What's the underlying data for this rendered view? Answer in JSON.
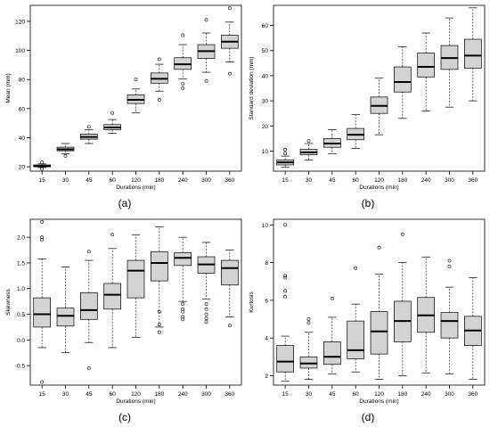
{
  "figure": {
    "panel_labels": [
      "(a)",
      "(b)",
      "(c)",
      "(d)"
    ]
  },
  "chart_data": [
    {
      "type": "box",
      "panel_label": "(a)",
      "xlabel": "Durations (min)",
      "ylabel": "Mean (mm)",
      "categories": [
        "15",
        "30",
        "45",
        "60",
        "120",
        "180",
        "240",
        "300",
        "360"
      ],
      "ylim": [
        17,
        131
      ],
      "yticks": [
        20,
        40,
        60,
        80,
        100,
        120
      ],
      "grid": false,
      "fill": "#d3d3d3",
      "boxes": [
        {
          "whislo": 19.5,
          "q1": 20.0,
          "med": 20.5,
          "q3": 21.3,
          "whishi": 22.0,
          "fliers": [
            23.0,
            18.5
          ]
        },
        {
          "whislo": 29.0,
          "q1": 31.0,
          "med": 32.0,
          "q3": 33.5,
          "whishi": 36.0,
          "fliers": [
            27.5
          ]
        },
        {
          "whislo": 36.0,
          "q1": 39.0,
          "med": 40.5,
          "q3": 42.5,
          "whishi": 45.5,
          "fliers": [
            47.5
          ]
        },
        {
          "whislo": 43.0,
          "q1": 45.5,
          "med": 47.0,
          "q3": 49.0,
          "whishi": 52.5,
          "fliers": [
            57.0
          ]
        },
        {
          "whislo": 57.0,
          "q1": 63.5,
          "med": 66.0,
          "q3": 69.5,
          "whishi": 73.5,
          "fliers": [
            80.0
          ]
        },
        {
          "whislo": 72.0,
          "q1": 77.5,
          "med": 80.5,
          "q3": 84.5,
          "whishi": 90.5,
          "fliers": [
            66.0,
            94.0
          ]
        },
        {
          "whislo": 80.5,
          "q1": 87.0,
          "med": 90.5,
          "q3": 95.0,
          "whishi": 104.0,
          "fliers": [
            110.5,
            74.0,
            77.0
          ]
        },
        {
          "whislo": 85.0,
          "q1": 94.5,
          "med": 99.5,
          "q3": 104.0,
          "whishi": 112.0,
          "fliers": [
            121.0,
            79.0
          ]
        },
        {
          "whislo": 92.0,
          "q1": 101.5,
          "med": 106.0,
          "q3": 110.5,
          "whishi": 119.5,
          "fliers": [
            129.0,
            84.0
          ]
        }
      ]
    },
    {
      "type": "box",
      "panel_label": "(b)",
      "xlabel": "Durations (min)",
      "ylabel": "Standard deviation (mm)",
      "categories": [
        "15",
        "30",
        "45",
        "60",
        "120",
        "180",
        "240",
        "300",
        "360"
      ],
      "ylim": [
        2,
        68
      ],
      "yticks": [
        10,
        20,
        30,
        40,
        50,
        60
      ],
      "grid": false,
      "fill": "#d3d3d3",
      "boxes": [
        {
          "whislo": 3.5,
          "q1": 4.5,
          "med": 5.5,
          "q3": 6.5,
          "whishi": 8.0,
          "fliers": [
            9.0,
            10.5
          ]
        },
        {
          "whislo": 6.5,
          "q1": 8.5,
          "med": 9.5,
          "q3": 10.7,
          "whishi": 13.0,
          "fliers": [
            14.0
          ]
        },
        {
          "whislo": 9.0,
          "q1": 11.5,
          "med": 13.0,
          "q3": 15.0,
          "whishi": 18.5,
          "fliers": []
        },
        {
          "whislo": 11.0,
          "q1": 14.5,
          "med": 16.5,
          "q3": 19.0,
          "whishi": 24.5,
          "fliers": []
        },
        {
          "whislo": 16.5,
          "q1": 25.0,
          "med": 28.0,
          "q3": 31.5,
          "whishi": 39.0,
          "fliers": []
        },
        {
          "whislo": 23.0,
          "q1": 33.5,
          "med": 37.5,
          "q3": 43.5,
          "whishi": 51.5,
          "fliers": []
        },
        {
          "whislo": 26.0,
          "q1": 39.5,
          "med": 43.5,
          "q3": 49.0,
          "whishi": 57.0,
          "fliers": []
        },
        {
          "whislo": 27.5,
          "q1": 42.5,
          "med": 47.0,
          "q3": 52.0,
          "whishi": 63.0,
          "fliers": []
        },
        {
          "whislo": 30.0,
          "q1": 43.0,
          "med": 48.0,
          "q3": 54.5,
          "whishi": 67.0,
          "fliers": []
        }
      ]
    },
    {
      "type": "box",
      "panel_label": "(c)",
      "xlabel": "Durations (min)",
      "ylabel": "Skewness",
      "categories": [
        "15",
        "30",
        "45",
        "60",
        "120",
        "180",
        "240",
        "300",
        "360"
      ],
      "ylim": [
        -0.88,
        2.35
      ],
      "yticks": [
        -0.5,
        0.0,
        0.5,
        1.0,
        1.5,
        2.0
      ],
      "ytick_labels": [
        "-0.5",
        "0.0",
        "0.5",
        "1.0",
        "1.5",
        "2.0"
      ],
      "grid": false,
      "fill": "#d3d3d3",
      "boxes": [
        {
          "whislo": -0.15,
          "q1": 0.25,
          "med": 0.5,
          "q3": 0.82,
          "whishi": 1.58,
          "fliers": [
            1.95,
            2.0,
            2.3,
            -0.82
          ]
        },
        {
          "whislo": -0.25,
          "q1": 0.27,
          "med": 0.47,
          "q3": 0.62,
          "whishi": 1.42,
          "fliers": []
        },
        {
          "whislo": -0.05,
          "q1": 0.4,
          "med": 0.58,
          "q3": 0.92,
          "whishi": 1.55,
          "fliers": [
            1.72,
            -0.55
          ]
        },
        {
          "whislo": -0.15,
          "q1": 0.6,
          "med": 0.88,
          "q3": 1.1,
          "whishi": 1.78,
          "fliers": [
            2.05
          ]
        },
        {
          "whislo": 0.05,
          "q1": 0.82,
          "med": 1.35,
          "q3": 1.55,
          "whishi": 2.05,
          "fliers": []
        },
        {
          "whislo": 0.25,
          "q1": 1.15,
          "med": 1.5,
          "q3": 1.72,
          "whishi": 2.2,
          "fliers": [
            0.55,
            0.3,
            0.15
          ]
        },
        {
          "whislo": 0.75,
          "q1": 1.45,
          "med": 1.6,
          "q3": 1.7,
          "whishi": 2.0,
          "fliers": [
            0.7,
            0.6,
            0.55,
            0.45,
            0.4
          ]
        },
        {
          "whislo": 0.8,
          "q1": 1.3,
          "med": 1.47,
          "q3": 1.62,
          "whishi": 1.9,
          "fliers": [
            0.7,
            0.6,
            0.5,
            0.42,
            0.35
          ]
        },
        {
          "whislo": 0.45,
          "q1": 1.07,
          "med": 1.4,
          "q3": 1.55,
          "whishi": 1.75,
          "fliers": [
            0.28
          ]
        }
      ]
    },
    {
      "type": "box",
      "panel_label": "(d)",
      "xlabel": "Durations (min)",
      "ylabel": "Kurtosis",
      "categories": [
        "15",
        "30",
        "45",
        "60",
        "120",
        "180",
        "240",
        "300",
        "360"
      ],
      "ylim": [
        1.5,
        10.3
      ],
      "yticks": [
        2,
        4,
        6,
        8,
        10
      ],
      "grid": false,
      "fill": "#d3d3d3",
      "boxes": [
        {
          "whislo": 1.7,
          "q1": 2.2,
          "med": 2.75,
          "q3": 3.6,
          "whishi": 4.1,
          "fliers": [
            6.2,
            6.5,
            7.2,
            7.3,
            10.0
          ]
        },
        {
          "whislo": 1.8,
          "q1": 2.4,
          "med": 2.65,
          "q3": 3.0,
          "whishi": 4.3,
          "fliers": [
            4.8,
            5.0
          ]
        },
        {
          "whislo": 2.1,
          "q1": 2.6,
          "med": 3.0,
          "q3": 3.8,
          "whishi": 5.1,
          "fliers": [
            6.1
          ]
        },
        {
          "whislo": 2.2,
          "q1": 2.9,
          "med": 3.35,
          "q3": 4.9,
          "whishi": 5.8,
          "fliers": [
            7.7
          ]
        },
        {
          "whislo": 1.8,
          "q1": 3.15,
          "med": 4.35,
          "q3": 5.4,
          "whishi": 7.4,
          "fliers": [
            8.8
          ]
        },
        {
          "whislo": 2.0,
          "q1": 3.8,
          "med": 4.9,
          "q3": 5.95,
          "whishi": 8.0,
          "fliers": [
            9.5
          ]
        },
        {
          "whislo": 2.15,
          "q1": 4.3,
          "med": 5.2,
          "q3": 6.15,
          "whishi": 8.3,
          "fliers": []
        },
        {
          "whislo": 2.1,
          "q1": 4.0,
          "med": 4.9,
          "q3": 5.35,
          "whishi": 6.7,
          "fliers": [
            7.8,
            8.1
          ]
        },
        {
          "whislo": 1.8,
          "q1": 3.6,
          "med": 4.4,
          "q3": 5.15,
          "whishi": 7.2,
          "fliers": []
        }
      ]
    }
  ]
}
